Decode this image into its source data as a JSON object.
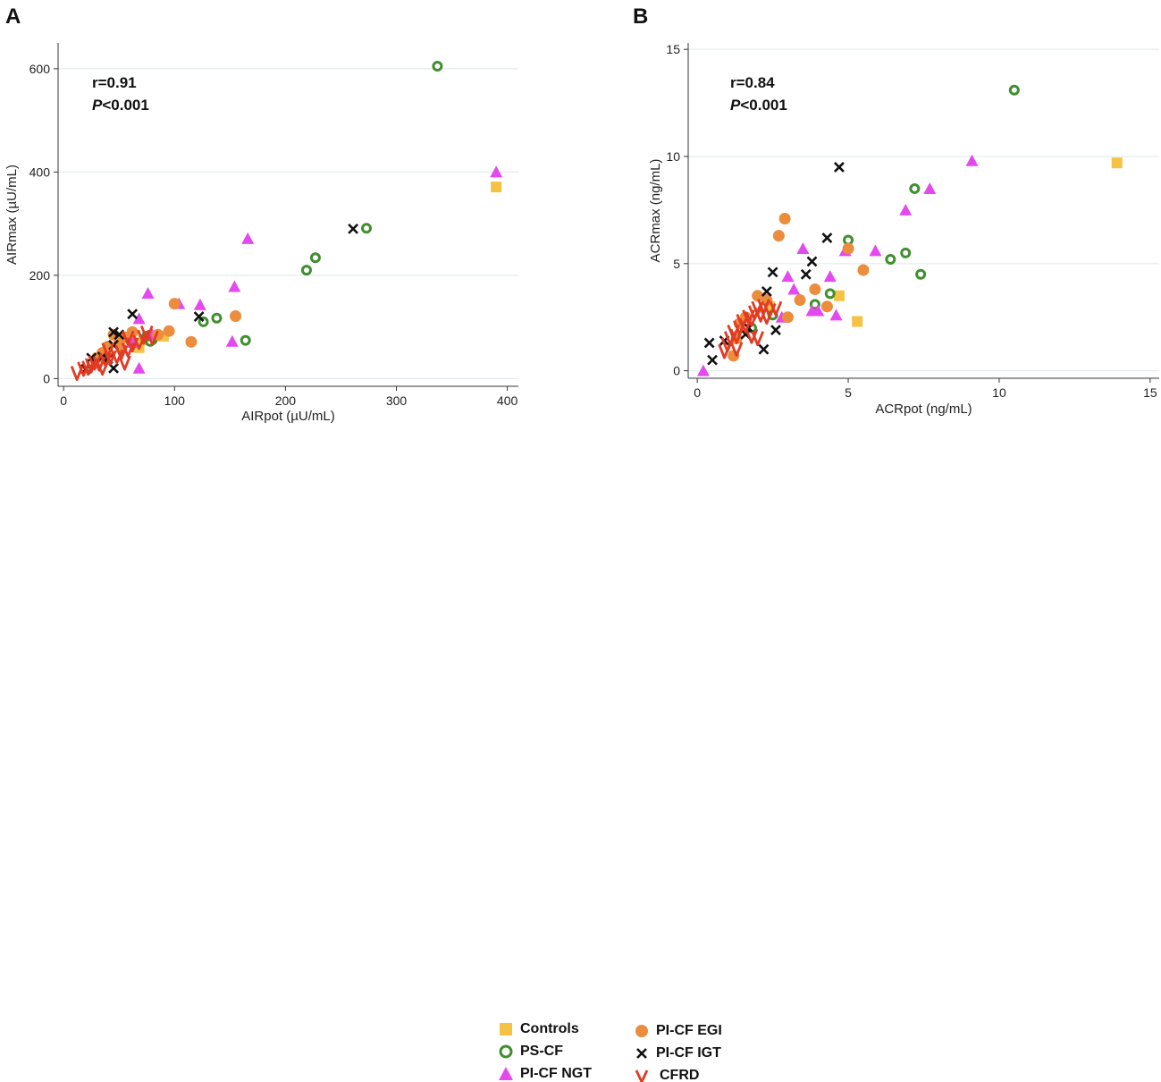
{
  "chart_data": [
    {
      "type": "scatter",
      "panel_label": "A",
      "xlabel": "AIRpot (µU/mL)",
      "ylabel": "AIRmax (µU/mL)",
      "xlim": [
        -5,
        410
      ],
      "ylim": [
        -15,
        650
      ],
      "xticks": [
        0,
        100,
        200,
        300,
        400
      ],
      "yticks": [
        0,
        200,
        400,
        600
      ],
      "grid": "horizontal",
      "annotation": {
        "r": "r=0.91",
        "p_label": "P",
        "p_rest": "<0.001"
      },
      "series": [
        {
          "name": "Controls",
          "points": [
            [
              68,
              60
            ],
            [
              90,
              82
            ],
            [
              72,
              75
            ],
            [
              390,
              371
            ]
          ]
        },
        {
          "name": "PS-CF",
          "points": [
            [
              337,
              605
            ],
            [
              273,
              291
            ],
            [
              227,
              234
            ],
            [
              219,
              210
            ],
            [
              164,
              74
            ],
            [
              138,
              117
            ],
            [
              126,
              110
            ],
            [
              80,
              75
            ],
            [
              78,
              72
            ],
            [
              75,
              82
            ]
          ]
        },
        {
          "name": "PI-CF NGT",
          "points": [
            [
              390,
              400
            ],
            [
              166,
              271
            ],
            [
              154,
              178
            ],
            [
              152,
              72
            ],
            [
              123,
              143
            ],
            [
              104,
              145
            ],
            [
              76,
              165
            ],
            [
              68,
              116
            ],
            [
              68,
              20
            ],
            [
              80,
              85
            ],
            [
              62,
              70
            ]
          ]
        },
        {
          "name": "PI-CF EGI",
          "points": [
            [
              155,
              121
            ],
            [
              115,
              71
            ],
            [
              100,
              145
            ],
            [
              95,
              92
            ],
            [
              85,
              85
            ],
            [
              62,
              90
            ],
            [
              55,
              80
            ],
            [
              52,
              58
            ],
            [
              50,
              70
            ],
            [
              45,
              85
            ],
            [
              40,
              62
            ],
            [
              35,
              50
            ],
            [
              30,
              40
            ]
          ]
        },
        {
          "name": "PI-CF IGT",
          "points": [
            [
              261,
              290
            ],
            [
              122,
              120
            ],
            [
              62,
              125
            ],
            [
              50,
              85
            ],
            [
              45,
              65
            ],
            [
              45,
              90
            ],
            [
              40,
              38
            ],
            [
              45,
              20
            ],
            [
              35,
              42
            ],
            [
              25,
              40
            ],
            [
              20,
              18
            ]
          ]
        },
        {
          "name": "CFRD",
          "points": [
            [
              12,
              10
            ],
            [
              18,
              18
            ],
            [
              22,
              20
            ],
            [
              25,
              25
            ],
            [
              28,
              30
            ],
            [
              32,
              28
            ],
            [
              38,
              35
            ],
            [
              42,
              40
            ],
            [
              48,
              42
            ],
            [
              52,
              50
            ],
            [
              58,
              55
            ],
            [
              62,
              65
            ],
            [
              68,
              70
            ],
            [
              72,
              80
            ],
            [
              40,
              55
            ],
            [
              55,
              30
            ],
            [
              35,
              20
            ],
            [
              75,
              88
            ],
            [
              80,
              78
            ],
            [
              58,
              78
            ]
          ]
        }
      ]
    },
    {
      "type": "scatter",
      "panel_label": "B",
      "xlabel": "ACRpot (ng/mL)",
      "ylabel": "ACRmax (ng/mL)",
      "xlim": [
        -0.3,
        15.3
      ],
      "ylim": [
        -0.35,
        15.3
      ],
      "xticks": [
        0,
        5,
        10,
        15
      ],
      "yticks": [
        0,
        5,
        10,
        15
      ],
      "grid": "horizontal",
      "annotation": {
        "r": "r=0.84",
        "p_label": "P",
        "p_rest": "<0.001"
      },
      "series": [
        {
          "name": "Controls",
          "points": [
            [
              13.9,
              9.7
            ],
            [
              4.7,
              3.5
            ],
            [
              5.3,
              2.3
            ],
            [
              2.4,
              3.0
            ]
          ]
        },
        {
          "name": "PS-CF",
          "points": [
            [
              10.5,
              13.1
            ],
            [
              7.2,
              8.5
            ],
            [
              5.0,
              6.1
            ],
            [
              6.9,
              5.5
            ],
            [
              6.4,
              5.2
            ],
            [
              7.4,
              4.5
            ],
            [
              4.4,
              3.6
            ],
            [
              3.9,
              3.1
            ],
            [
              1.8,
              2.0
            ],
            [
              2.5,
              2.6
            ]
          ]
        },
        {
          "name": "PI-CF NGT",
          "points": [
            [
              9.1,
              9.8
            ],
            [
              7.7,
              8.5
            ],
            [
              6.9,
              7.5
            ],
            [
              5.9,
              5.6
            ],
            [
              4.9,
              5.6
            ],
            [
              4.4,
              4.4
            ],
            [
              3.5,
              5.7
            ],
            [
              3.0,
              4.4
            ],
            [
              3.2,
              3.8
            ],
            [
              4.6,
              2.6
            ],
            [
              3.8,
              2.8
            ],
            [
              4.0,
              2.8
            ],
            [
              0.2,
              0.0
            ],
            [
              2.8,
              2.5
            ]
          ]
        },
        {
          "name": "PI-CF EGI",
          "points": [
            [
              2.9,
              7.1
            ],
            [
              2.7,
              6.3
            ],
            [
              5.0,
              5.7
            ],
            [
              5.5,
              4.7
            ],
            [
              3.9,
              3.8
            ],
            [
              3.4,
              3.3
            ],
            [
              4.3,
              3.0
            ],
            [
              3.0,
              2.5
            ],
            [
              2.0,
              3.5
            ],
            [
              2.3,
              3.3
            ],
            [
              1.6,
              2.5
            ],
            [
              1.4,
              2.2
            ],
            [
              1.3,
              1.5
            ],
            [
              1.2,
              0.7
            ]
          ]
        },
        {
          "name": "PI-CF IGT",
          "points": [
            [
              4.7,
              9.5
            ],
            [
              4.3,
              6.2
            ],
            [
              3.8,
              5.1
            ],
            [
              3.6,
              4.5
            ],
            [
              2.5,
              4.6
            ],
            [
              2.3,
              3.7
            ],
            [
              2.6,
              1.9
            ],
            [
              2.2,
              1.0
            ],
            [
              0.9,
              1.4
            ],
            [
              0.4,
              1.3
            ],
            [
              0.5,
              0.5
            ],
            [
              1.7,
              2.0
            ],
            [
              1.6,
              1.7
            ]
          ]
        },
        {
          "name": "CFRD",
          "points": [
            [
              0.9,
              0.9
            ],
            [
              1.0,
              1.2
            ],
            [
              1.1,
              1.5
            ],
            [
              1.2,
              1.8
            ],
            [
              1.3,
              1.6
            ],
            [
              1.4,
              2.0
            ],
            [
              1.5,
              2.3
            ],
            [
              1.6,
              2.1
            ],
            [
              1.7,
              2.5
            ],
            [
              1.8,
              2.4
            ],
            [
              1.9,
              2.7
            ],
            [
              2.0,
              2.9
            ],
            [
              2.1,
              2.6
            ],
            [
              2.2,
              3.0
            ],
            [
              2.3,
              2.5
            ],
            [
              2.4,
              2.8
            ],
            [
              2.6,
              2.9
            ],
            [
              1.8,
              1.6
            ],
            [
              2.0,
              1.5
            ],
            [
              1.3,
              1.0
            ]
          ]
        }
      ]
    }
  ],
  "legend": {
    "items": [
      {
        "key": "controls",
        "label": "Controls"
      },
      {
        "key": "pscf",
        "label": "PS-CF"
      },
      {
        "key": "ngt",
        "label": "PI-CF NGT"
      },
      {
        "key": "egi",
        "label": "PI-CF EGI"
      },
      {
        "key": "igt",
        "label": "PI-CF IGT"
      },
      {
        "key": "cfrd",
        "label": "CFRD"
      }
    ]
  },
  "colors": {
    "Controls": "#f6c244",
    "PS-CF": "#3f8f2e",
    "PI-CF NGT": "#e449f0",
    "PI-CF EGI": "#ec8c3d",
    "PI-CF IGT": "#111111",
    "CFRD": "#e23b23",
    "grid": "#e3ecef",
    "axis": "#333333"
  }
}
